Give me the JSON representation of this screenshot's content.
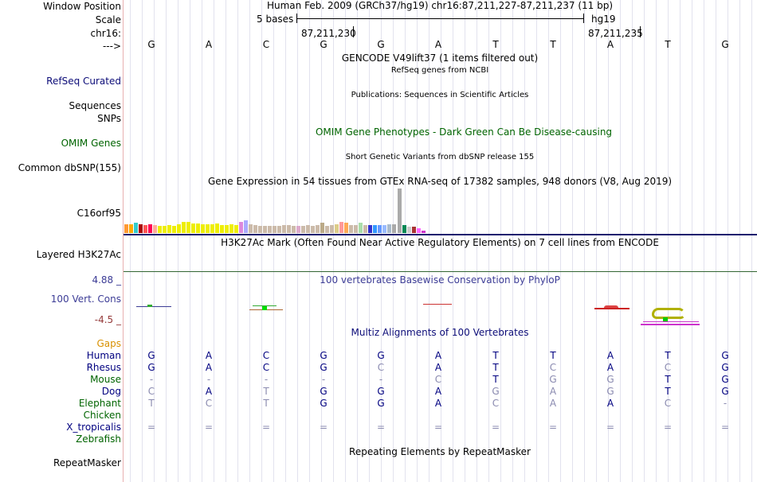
{
  "labels": {
    "window_position": "Window Position",
    "scale": "Scale",
    "chrom": "chr16:",
    "strand": "--->",
    "refseq": "RefSeq Curated",
    "sequences": "Sequences",
    "snps": "SNPs",
    "omim": "OMIM Genes",
    "dbsnp": "Common dbSNP(155)",
    "gene": "C16orf95",
    "h3k27ac": "Layered H3K27Ac",
    "cons_max": "4.88 _",
    "cons": "100 Vert. Cons",
    "cons_min": "-4.5 _",
    "gaps": "Gaps",
    "species": [
      "Human",
      "Rhesus",
      "Mouse",
      "Dog",
      "Elephant",
      "Chicken",
      "X_tropicalis",
      "Zebrafish"
    ],
    "repeatmasker": "RepeatMasker"
  },
  "header": {
    "position": "Human Feb. 2009 (GRCh37/hg19)   chr16:87,211,227-87,211,237 (11 bp)",
    "scale_label": "5 bases",
    "assembly": "hg19",
    "coord_a": "87,211,230",
    "coord_b": "87,211,235"
  },
  "ruler_bases": [
    "G",
    "A",
    "C",
    "G",
    "G",
    "A",
    "T",
    "T",
    "A",
    "T",
    "G"
  ],
  "tracks": {
    "gencode": "GENCODE V49lift37 (1 items filtered out)",
    "refseq": "RefSeq genes from NCBI",
    "publications": "Publications: Sequences in Scientific Articles",
    "omim": "OMIM Gene Phenotypes - Dark Green Can Be Disease-causing",
    "dbsnp": "Short Genetic Variants from dbSNP release 155",
    "gtex": "Gene Expression in 54 tissues from GTEx RNA-seq of 17382 samples, 948 donors (V8, Aug 2019)",
    "h3k27ac": "H3K27Ac Mark (Often Found Near Active Regulatory Elements) on 7 cell lines from ENCODE",
    "phylop": "100 vertebrates Basewise Conservation by PhyloP",
    "multiz": "Multiz Alignments of 100 Vertebrates",
    "repeatmasker": "Repeating Elements by RepeatMasker"
  },
  "alignment": {
    "Human": [
      "G",
      "A",
      "C",
      "G",
      "G",
      "A",
      "T",
      "T",
      "A",
      "T",
      "G"
    ],
    "Rhesus": [
      "G",
      "A",
      "C",
      "G",
      "C",
      "A",
      "T",
      "C",
      "A",
      "C",
      "G"
    ],
    "Mouse": [
      "-",
      "-",
      "-",
      "-",
      "-",
      "C",
      "T",
      "G",
      "G",
      "T",
      "G"
    ],
    "Dog": [
      "C",
      "A",
      "T",
      "G",
      "G",
      "A",
      "G",
      "A",
      "G",
      "T",
      "G"
    ],
    "Elephant": [
      "T",
      "C",
      "T",
      "G",
      "G",
      "A",
      "C",
      "A",
      "A",
      "C",
      "-"
    ],
    "X_tropicalis": [
      "=",
      "=",
      "=",
      "=",
      "=",
      "=",
      "=",
      "=",
      "=",
      "=",
      "="
    ]
  },
  "colors": {
    "label_blue": "#000080",
    "refseq_blue": "#0c0c78",
    "omim_green": "#006400",
    "gaps_orange": "#d89000",
    "cons_blue": "#3c3c96",
    "green_species": "#006400"
  }
}
